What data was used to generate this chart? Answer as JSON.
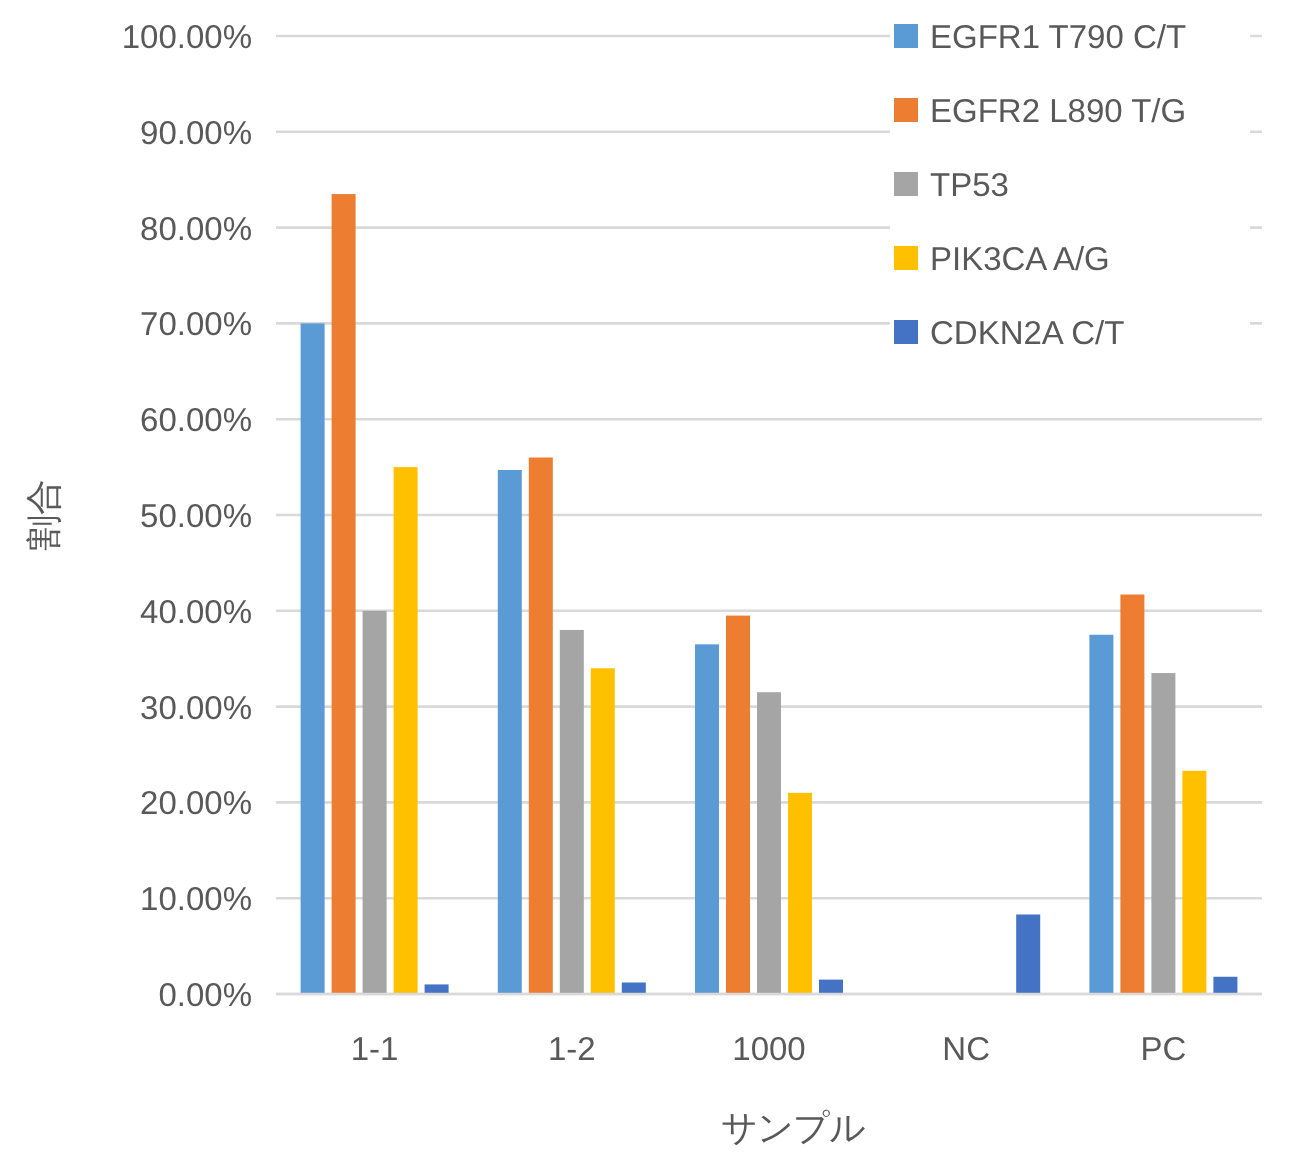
{
  "chart_data": {
    "type": "bar",
    "xlabel": "サンプル",
    "ylabel": "割合",
    "categories": [
      "1-1",
      "1-2",
      "1000",
      "NC",
      "PC"
    ],
    "series": [
      {
        "name": "EGFR1 T790 C/T",
        "color": "#5b9bd5",
        "values": [
          70,
          54.7,
          36.5,
          0,
          37.5
        ]
      },
      {
        "name": "EGFR2 L890 T/G",
        "color": "#ed7d31",
        "values": [
          83.5,
          56,
          39.5,
          0,
          41.7
        ]
      },
      {
        "name": "TP53",
        "color": "#a5a5a5",
        "values": [
          40,
          38,
          31.5,
          0,
          33.5
        ]
      },
      {
        "name": "PIK3CA A/G",
        "color": "#ffc000",
        "values": [
          55,
          34,
          21,
          0,
          23.3
        ]
      },
      {
        "name": "CDKN2A C/T",
        "color": "#4472c4",
        "values": [
          1,
          1.2,
          1.5,
          8.3,
          1.8
        ]
      }
    ],
    "ylim": [
      0,
      100
    ],
    "yticks": [
      {
        "value": 0,
        "label": "0.00%"
      },
      {
        "value": 10,
        "label": "10.00%"
      },
      {
        "value": 20,
        "label": "20.00%"
      },
      {
        "value": 30,
        "label": "30.00%"
      },
      {
        "value": 40,
        "label": "40.00%"
      },
      {
        "value": 50,
        "label": "50.00%"
      },
      {
        "value": 60,
        "label": "60.00%"
      },
      {
        "value": 70,
        "label": "70.00%"
      },
      {
        "value": 80,
        "label": "80.00%"
      },
      {
        "value": 90,
        "label": "90.00%"
      },
      {
        "value": 100,
        "label": "100.00%"
      }
    ],
    "grid": "y",
    "legend": "top right"
  }
}
